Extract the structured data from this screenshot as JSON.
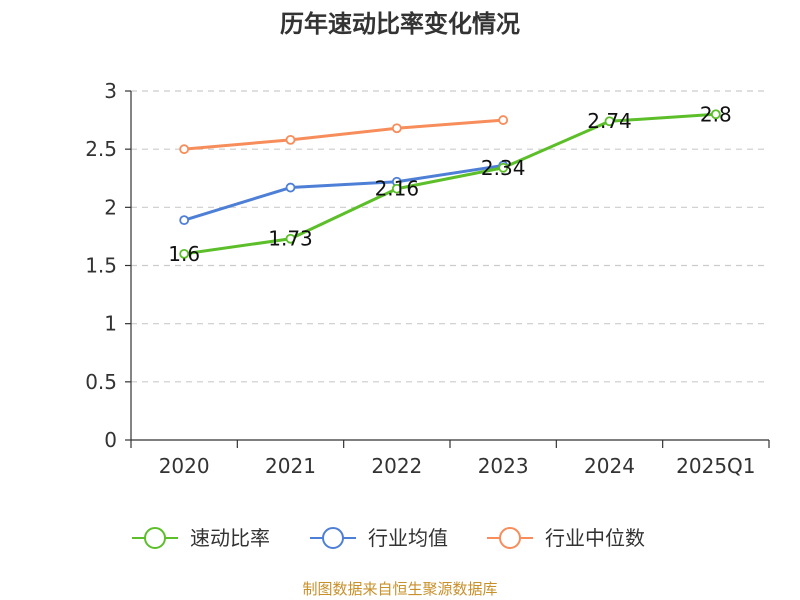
{
  "chart_data": {
    "type": "line",
    "title": "历年速动比率变化情况",
    "categories": [
      "2020",
      "2021",
      "2022",
      "2023",
      "2024",
      "2025Q1"
    ],
    "ylim": [
      0,
      3
    ],
    "yticks": [
      "0",
      "0.5",
      "1",
      "1.5",
      "2",
      "2.5",
      "3"
    ],
    "grid": true,
    "legend_position": "bottom",
    "series": [
      {
        "name": "速动比率",
        "color": "#5cbf2a",
        "values": [
          1.6,
          1.73,
          2.16,
          2.34,
          2.74,
          2.8
        ],
        "labels": [
          "1.6",
          "1.73",
          "2.16",
          "2.34",
          "2.74",
          "2.8"
        ]
      },
      {
        "name": "行业均值",
        "color": "#4e7fd6",
        "values": [
          1.89,
          2.17,
          2.22,
          2.36,
          null,
          null
        ]
      },
      {
        "name": "行业中位数",
        "color": "#f78d5a",
        "values": [
          2.5,
          2.58,
          2.68,
          2.75,
          null,
          null
        ]
      }
    ],
    "source": "制图数据来自恒生聚源数据库"
  }
}
